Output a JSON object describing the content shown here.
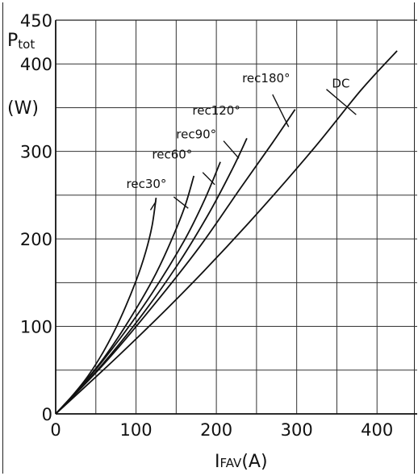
{
  "chart_data": {
    "type": "line",
    "xlabel_main": "I",
    "xlabel_sub": "FAV",
    "xlabel_unit": "(A)",
    "ylabel_main": "P",
    "ylabel_sub": "tot",
    "ylabel_unit": "(W)",
    "xlim": [
      0,
      450
    ],
    "ylim": [
      0,
      450
    ],
    "grid": true,
    "x_ticks": [
      0,
      100,
      200,
      300,
      400
    ],
    "x_tick_labels": [
      "0",
      "100",
      "200",
      "300",
      "400"
    ],
    "y_ticks": [
      0,
      100,
      200,
      300,
      400,
      450
    ],
    "y_tick_labels": [
      "0",
      "100",
      "200",
      "300",
      "400",
      "450"
    ],
    "series": [
      {
        "name": "rec30°",
        "points": [
          [
            0,
            0
          ],
          [
            20,
            20
          ],
          [
            40,
            43
          ],
          [
            60,
            72
          ],
          [
            80,
            108
          ],
          [
            100,
            152
          ],
          [
            112,
            185
          ],
          [
            120,
            215
          ],
          [
            125,
            247
          ]
        ],
        "label_at": [
          113,
          258
        ]
      },
      {
        "name": "rec60°",
        "points": [
          [
            0,
            0
          ],
          [
            30,
            30
          ],
          [
            60,
            64
          ],
          [
            90,
            105
          ],
          [
            120,
            152
          ],
          [
            140,
            190
          ],
          [
            160,
            235
          ],
          [
            172,
            272
          ]
        ],
        "label_at": [
          145,
          292
        ]
      },
      {
        "name": "rec90°",
        "points": [
          [
            0,
            0
          ],
          [
            40,
            40
          ],
          [
            80,
            86
          ],
          [
            120,
            138
          ],
          [
            160,
            198
          ],
          [
            185,
            244
          ],
          [
            205,
            288
          ]
        ],
        "label_at": [
          175,
          315
        ]
      },
      {
        "name": "rec120°",
        "points": [
          [
            0,
            0
          ],
          [
            50,
            48
          ],
          [
            100,
            104
          ],
          [
            150,
            168
          ],
          [
            190,
            228
          ],
          [
            220,
            280
          ],
          [
            238,
            315
          ]
        ],
        "label_at": [
          200,
          342
        ]
      },
      {
        "name": "rec180°",
        "points": [
          [
            0,
            0
          ],
          [
            60,
            57
          ],
          [
            120,
            122
          ],
          [
            180,
            192
          ],
          [
            230,
            258
          ],
          [
            270,
            310
          ],
          [
            298,
            348
          ]
        ],
        "label_at": [
          262,
          379
        ]
      },
      {
        "name": "DC",
        "points": [
          [
            0,
            0
          ],
          [
            80,
            68
          ],
          [
            160,
            140
          ],
          [
            240,
            218
          ],
          [
            320,
            302
          ],
          [
            380,
            370
          ],
          [
            425,
            415
          ]
        ],
        "label_at": [
          355,
          373
        ]
      }
    ],
    "leader_lines": [
      {
        "series": "rec30°",
        "from": [
          118,
          233
        ],
        "to": [
          125,
          243
        ]
      },
      {
        "series": "rec60°",
        "from": [
          147,
          248
        ],
        "to": [
          165,
          235
        ]
      },
      {
        "series": "rec90°",
        "from": [
          183,
          276
        ],
        "to": [
          198,
          262
        ]
      },
      {
        "series": "rec120°",
        "from": [
          209,
          312
        ],
        "to": [
          228,
          292
        ]
      },
      {
        "series": "rec180°",
        "from": [
          270,
          365
        ],
        "to": [
          290,
          328
        ]
      },
      {
        "series": "DC",
        "from": [
          337,
          371
        ],
        "to": [
          374,
          342
        ]
      }
    ]
  }
}
